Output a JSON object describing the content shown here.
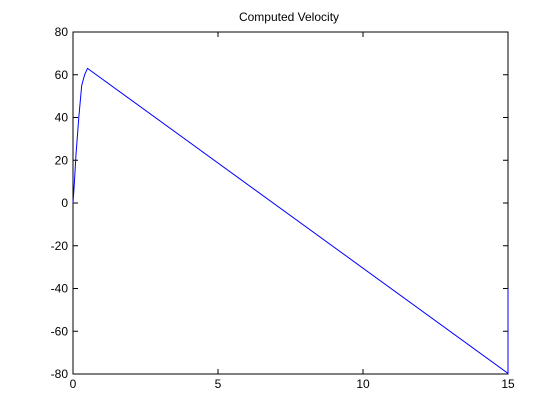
{
  "chart_data": {
    "type": "line",
    "title": "Computed Velocity",
    "xlabel": "",
    "ylabel": "",
    "xlim": [
      0,
      15
    ],
    "ylim": [
      -80,
      80
    ],
    "grid": false,
    "x_ticks": [
      0,
      5,
      10,
      15
    ],
    "y_ticks": [
      -80,
      -60,
      -40,
      -20,
      0,
      20,
      40,
      60,
      80
    ],
    "series": [
      {
        "color": "#0000ff",
        "x": [
          0,
          0.05,
          0.1,
          0.2,
          0.3,
          0.4,
          0.5,
          14.98,
          15,
          15
        ],
        "y": [
          0,
          10,
          22,
          40,
          55,
          60,
          63,
          -79.5,
          -80,
          -40
        ]
      }
    ]
  }
}
